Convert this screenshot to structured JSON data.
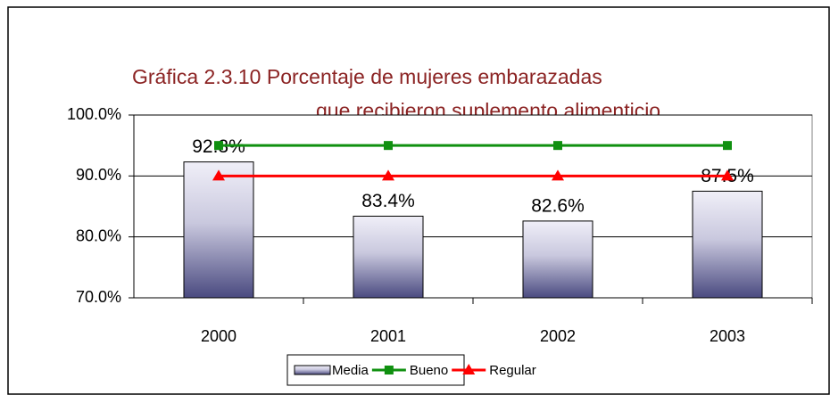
{
  "chart_data": {
    "type": "bar",
    "title": [
      "Gráfica 2.3.10 Porcentaje de mujeres embarazadas",
      "que recibieron suplemento alimenticio"
    ],
    "categories": [
      "2000",
      "2001",
      "2002",
      "2003"
    ],
    "series": [
      {
        "name": "Media",
        "type": "bar",
        "color": "#5a5a8c",
        "values": [
          92.3,
          83.4,
          82.6,
          87.5
        ],
        "value_labels": [
          "92.3%",
          "83.4%",
          "82.6%",
          "87.5%"
        ]
      },
      {
        "name": "Bueno",
        "type": "line",
        "marker": "square",
        "color": "#109010",
        "values": [
          95,
          95,
          95,
          95
        ]
      },
      {
        "name": "Regular",
        "type": "line",
        "marker": "triangle",
        "color": "#ff0000",
        "values": [
          90,
          90,
          90,
          90
        ]
      }
    ],
    "ylim": [
      70,
      100
    ],
    "yticks": [
      {
        "value": 70,
        "label": "70.0%"
      },
      {
        "value": 80,
        "label": "80.0%"
      },
      {
        "value": 90,
        "label": "90.0%"
      },
      {
        "value": 100,
        "label": "100.0%"
      }
    ],
    "grid": true,
    "legend": "bottom"
  }
}
